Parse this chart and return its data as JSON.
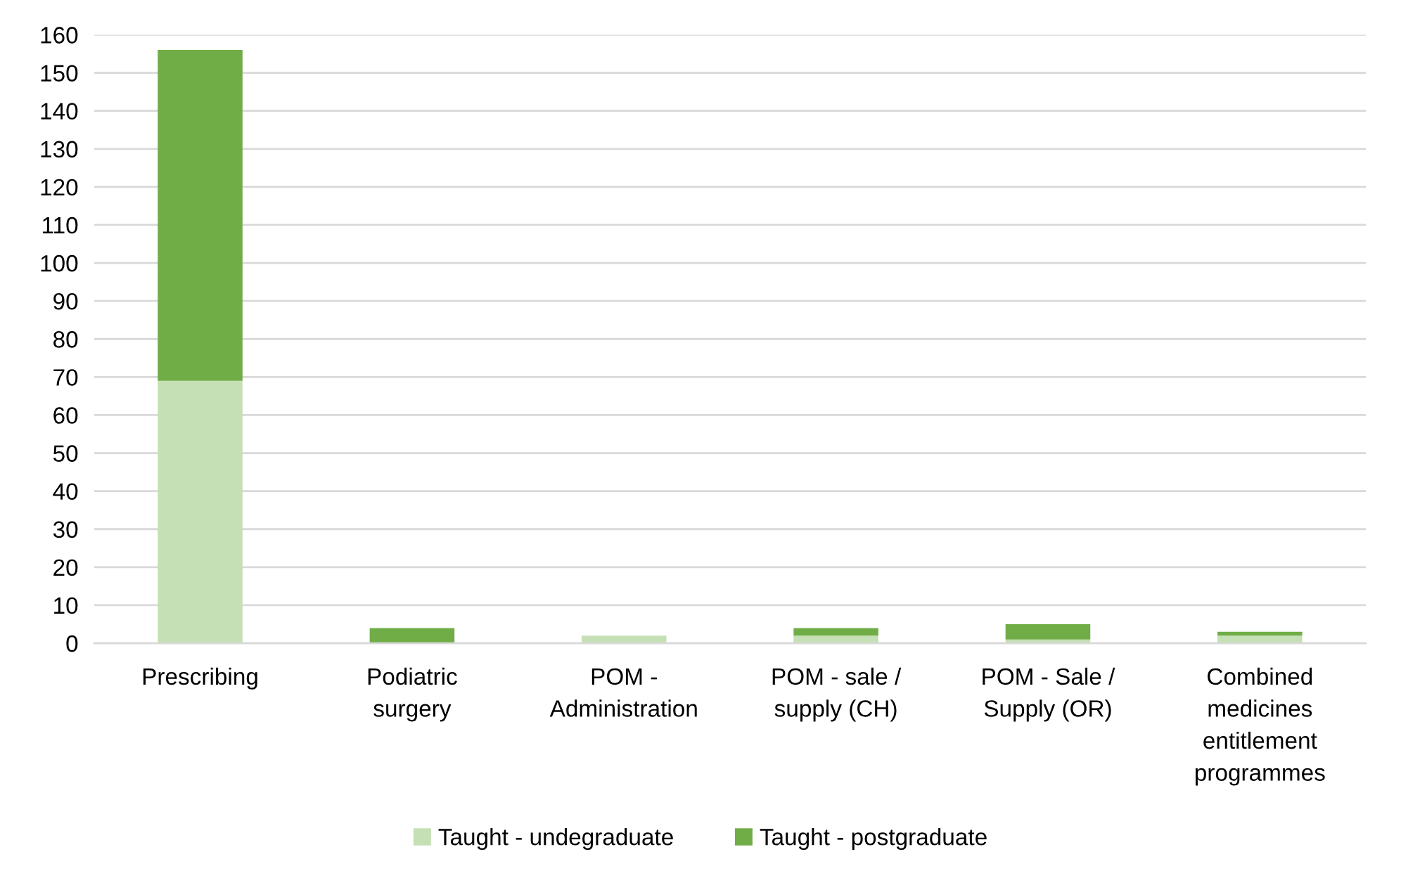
{
  "chart_data": {
    "type": "bar",
    "stacked": true,
    "categories": [
      "Prescribing",
      "Podiatric\nsurgery",
      "POM -\nAdministration",
      "POM - sale /\nsupply (CH)",
      "POM - Sale /\nSupply (OR)",
      "Combined\nmedicines\nentitlement\nprogrammes"
    ],
    "series": [
      {
        "name": "Taught - undegraduate",
        "color": "#c5e0b4",
        "values": [
          69,
          0,
          2,
          2,
          1,
          2
        ]
      },
      {
        "name": "Taught - postgraduate",
        "color": "#70ad47",
        "values": [
          87,
          4,
          0,
          2,
          4,
          1
        ]
      }
    ],
    "ylim": [
      0,
      160
    ],
    "yticks": [
      0,
      10,
      20,
      30,
      40,
      50,
      60,
      70,
      80,
      90,
      100,
      110,
      120,
      130,
      140,
      150,
      160
    ],
    "grid": "y",
    "legend": "bottom"
  }
}
